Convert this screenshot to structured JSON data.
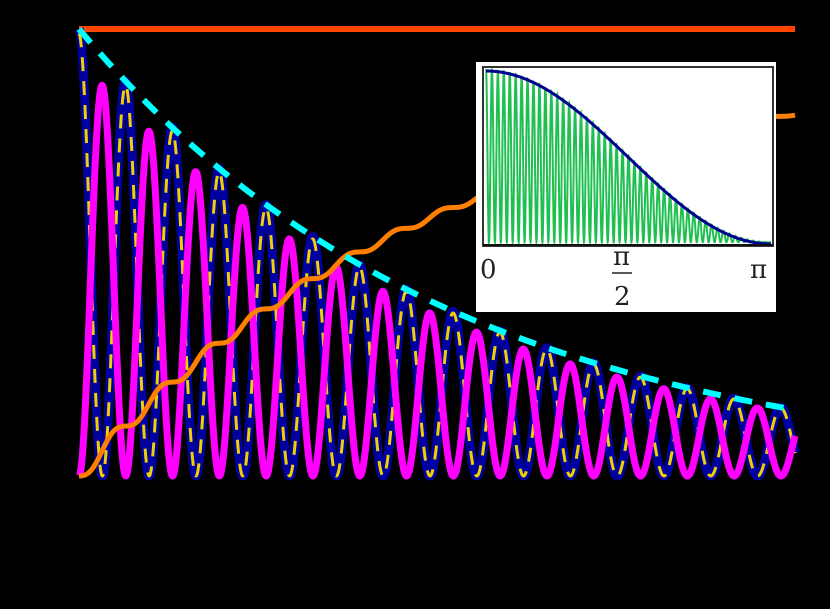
{
  "chart_data": {
    "type": "line",
    "background": "#000000",
    "title": "",
    "xlabel": "",
    "ylabel": "",
    "ylim": [
      0,
      1
    ],
    "xlim": [
      0,
      1
    ],
    "grid": false,
    "legend": null,
    "series": [
      {
        "name": "constant",
        "color": "#ff4500",
        "style": "solid",
        "width": 6,
        "function": "1"
      },
      {
        "name": "envelope",
        "color": "#00ffff",
        "style": "dashed",
        "width": 6,
        "function": "exp(-1.91 t)",
        "end_value": 0.148
      },
      {
        "name": "magenta-oscillation",
        "color": "#ff00ff",
        "style": "solid",
        "width": 7,
        "function": "env(t) * sin^2 oscillation (phase-shifted)",
        "peaks": 15
      },
      {
        "name": "blue-oscillation",
        "color": "#0000a0",
        "style": "solid",
        "width": 9,
        "function": "env(t) * cos^2 oscillation",
        "peaks": 16
      },
      {
        "name": "yellow-oscillation",
        "color": "#f0d000",
        "style": "dashed",
        "width": 3,
        "function": "env(t) * cos^2 oscillation (overlay on blue)"
      },
      {
        "name": "orange-cumulative",
        "color": "#ff7f00",
        "style": "solid",
        "width": 5,
        "function": "staircase rise",
        "end_value": 0.81
      }
    ],
    "inset": {
      "xlim": [
        0,
        3.1416
      ],
      "xticks": [
        "0",
        "π/2",
        "π"
      ],
      "series": [
        {
          "name": "green-oscillation",
          "color": "#20c050",
          "cycles": 48
        },
        {
          "name": "envelope-cos2",
          "color": "#000090",
          "function": "cos^2(x/2)"
        }
      ]
    }
  },
  "inset": {
    "tick_0": "0",
    "tick_half_num": "π",
    "tick_half_den": "2",
    "tick_pi": "π"
  }
}
